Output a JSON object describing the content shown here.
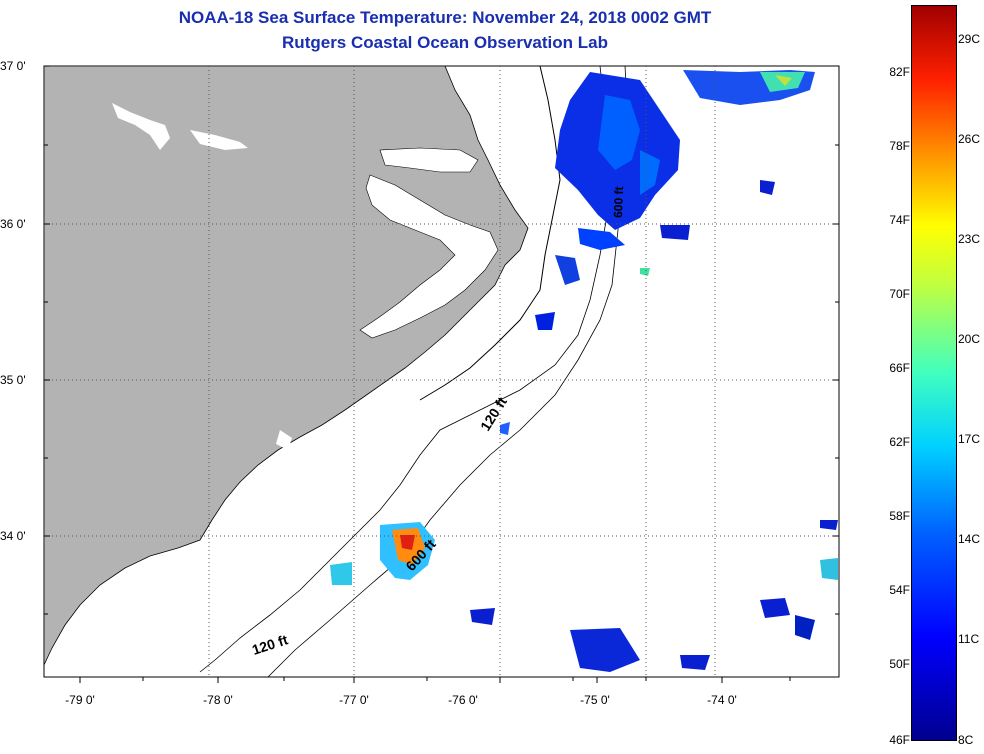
{
  "title": {
    "line1": "NOAA-18 Sea Surface Temperature:  November 24, 2018 0002 GMT",
    "line2": "Rutgers Coastal Ocean Observation Lab"
  },
  "map": {
    "lat_labels": [
      "37 0'",
      "36 0'",
      "35 0'",
      "34 0'"
    ],
    "lon_labels": [
      "-79 0'",
      "-78 0'",
      "-77 0'",
      "-76 0'",
      "-75 0'",
      "-74 0'"
    ],
    "lat_values": [
      37,
      36,
      35,
      34
    ],
    "lon_values": [
      -79,
      -78,
      -77,
      -76,
      -75,
      -74
    ],
    "contour_labels": [
      "120 ft",
      "120 ft",
      "600 ft",
      "600 ft"
    ],
    "land_color": "#b3b3b3",
    "grid": "dotted"
  },
  "colorbar": {
    "fahrenheit": [
      "82F",
      "78F",
      "74F",
      "70F",
      "66F",
      "62F",
      "58F",
      "54F",
      "50F",
      "46F"
    ],
    "celsius": [
      "29C",
      "26C",
      "23C",
      "20C",
      "17C",
      "14C",
      "11C",
      "8C"
    ],
    "min_f": 46,
    "max_f": 84,
    "colors": [
      "#00008f",
      "#0000ff",
      "#00d0ff",
      "#ffff00",
      "#ff2000",
      "#a00000"
    ]
  }
}
